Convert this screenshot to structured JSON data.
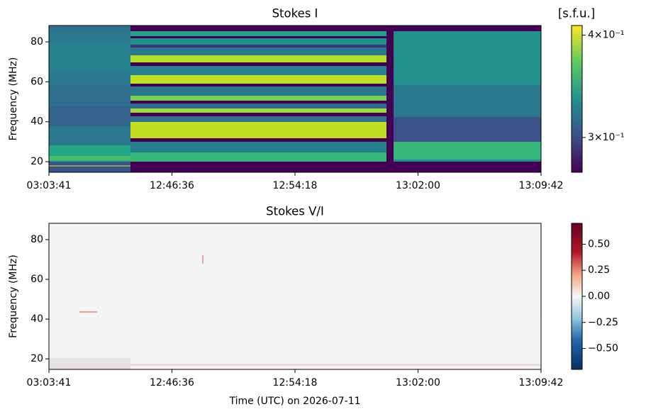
{
  "chart_data": [
    {
      "type": "heatmap",
      "title": "Stokes I",
      "colorbar_label": "[s.f.u.]",
      "ylabel": "Frequency (MHz)",
      "x": [
        "03:03:41",
        "12:46:36",
        "12:54:18",
        "13:02:00",
        "13:09:42"
      ],
      "ylim": [
        14.7,
        88.2
      ],
      "yticks": [
        20,
        40,
        60,
        80
      ],
      "colormap": "viridis",
      "colorbar_scale": "log",
      "clim": [
        0.272,
        0.411
      ],
      "colorbar_ticks": [
        {
          "value": 0.3,
          "label": "3×10⁻¹"
        },
        {
          "value": 0.4,
          "label": "4×10⁻¹"
        }
      ]
    },
    {
      "type": "heatmap",
      "title": "Stokes V/I",
      "ylabel": "Frequency (MHz)",
      "xlabel": "Time (UTC) on 2026-07-11",
      "x": [
        "03:03:41",
        "12:46:36",
        "12:54:18",
        "13:02:00",
        "13:09:42"
      ],
      "ylim": [
        14.7,
        88.2
      ],
      "yticks": [
        20,
        40,
        60,
        80
      ],
      "colormap": "RdBu_r",
      "colorbar_scale": "linear",
      "clim": [
        -0.7,
        0.7
      ],
      "colorbar_ticks": [
        {
          "value": 0.5,
          "label": "0.50"
        },
        {
          "value": 0.25,
          "label": "0.25"
        },
        {
          "value": 0,
          "label": "0.00"
        },
        {
          "value": -0.25,
          "label": "−0.25"
        },
        {
          "value": -0.5,
          "label": "−0.50"
        }
      ]
    }
  ]
}
